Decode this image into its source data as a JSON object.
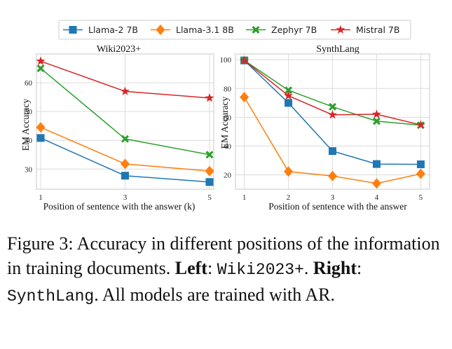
{
  "colors": {
    "llama2": "#1f77b4",
    "llama31": "#ff7f0e",
    "zephyr": "#2ca02c",
    "mistral": "#d62728",
    "grid": "#dcdcdc",
    "panel_border": "#c8c8c8"
  },
  "legend": {
    "items": [
      {
        "name": "Llama-2 7B",
        "marker": "square",
        "color_key": "llama2"
      },
      {
        "name": "Llama-3.1 8B",
        "marker": "diamond",
        "color_key": "llama31"
      },
      {
        "name": "Zephyr 7B",
        "marker": "x-cross",
        "color_key": "zephyr"
      },
      {
        "name": "Mistral 7B",
        "marker": "star",
        "color_key": "mistral"
      }
    ],
    "placement": "top-center"
  },
  "chart_data": [
    {
      "type": "line",
      "title": "Wiki2023+",
      "xlabel": "Position of sentence with the answer (k)",
      "ylabel": "EM Accuracy",
      "x": [
        1,
        3,
        5
      ],
      "xticks": [
        1,
        3,
        5
      ],
      "xlim": [
        0.9,
        5.1
      ],
      "yticks": [
        30,
        40,
        50,
        60
      ],
      "ylim": [
        23,
        70
      ],
      "grid": true,
      "series": [
        {
          "name": "Llama-2 7B",
          "color_key": "llama2",
          "marker": "square",
          "values": [
            40.8,
            27.7,
            25.5
          ]
        },
        {
          "name": "Llama-3.1 8B",
          "color_key": "llama31",
          "marker": "diamond",
          "values": [
            44.5,
            31.8,
            29.3
          ]
        },
        {
          "name": "Zephyr 7B",
          "color_key": "zephyr",
          "marker": "x-cross",
          "values": [
            65.0,
            40.5,
            35.0
          ]
        },
        {
          "name": "Mistral 7B",
          "color_key": "mistral",
          "marker": "star",
          "values": [
            67.5,
            57.0,
            54.7
          ]
        }
      ]
    },
    {
      "type": "line",
      "title": "SynthLang",
      "xlabel": "Position of sentence with the answer",
      "ylabel": "EM Accuracy",
      "x": [
        1,
        2,
        3,
        4,
        5
      ],
      "xticks": [
        1,
        2,
        3,
        4,
        5
      ],
      "xlim": [
        0.8,
        5.2
      ],
      "yticks": [
        20,
        40,
        60,
        80,
        100
      ],
      "ylim": [
        10,
        104
      ],
      "grid": true,
      "series": [
        {
          "name": "Llama-2 7B",
          "color_key": "llama2",
          "marker": "square",
          "values": [
            99.5,
            70.0,
            36.5,
            27.5,
            27.3
          ]
        },
        {
          "name": "Llama-3.1 8B",
          "color_key": "llama31",
          "marker": "diamond",
          "values": [
            74.0,
            22.3,
            19.2,
            14.0,
            20.7
          ]
        },
        {
          "name": "Zephyr 7B",
          "color_key": "zephyr",
          "marker": "x-cross",
          "values": [
            99.5,
            78.8,
            67.3,
            57.3,
            54.5
          ]
        },
        {
          "name": "Mistral 7B",
          "color_key": "mistral",
          "marker": "star",
          "values": [
            99.5,
            75.0,
            61.7,
            62.1,
            54.7
          ]
        }
      ]
    }
  ],
  "caption": {
    "prefix": "Figure 3: Accuracy in different positions of the information in training documents. ",
    "left_label": "Left",
    "left_sep": ": ",
    "left_dataset": "Wiki2023+",
    "after_left": ". ",
    "right_label": "Right",
    "right_sep": ":",
    "right_dataset": "SynthLang",
    "suffix": ". All models are trained with AR."
  }
}
